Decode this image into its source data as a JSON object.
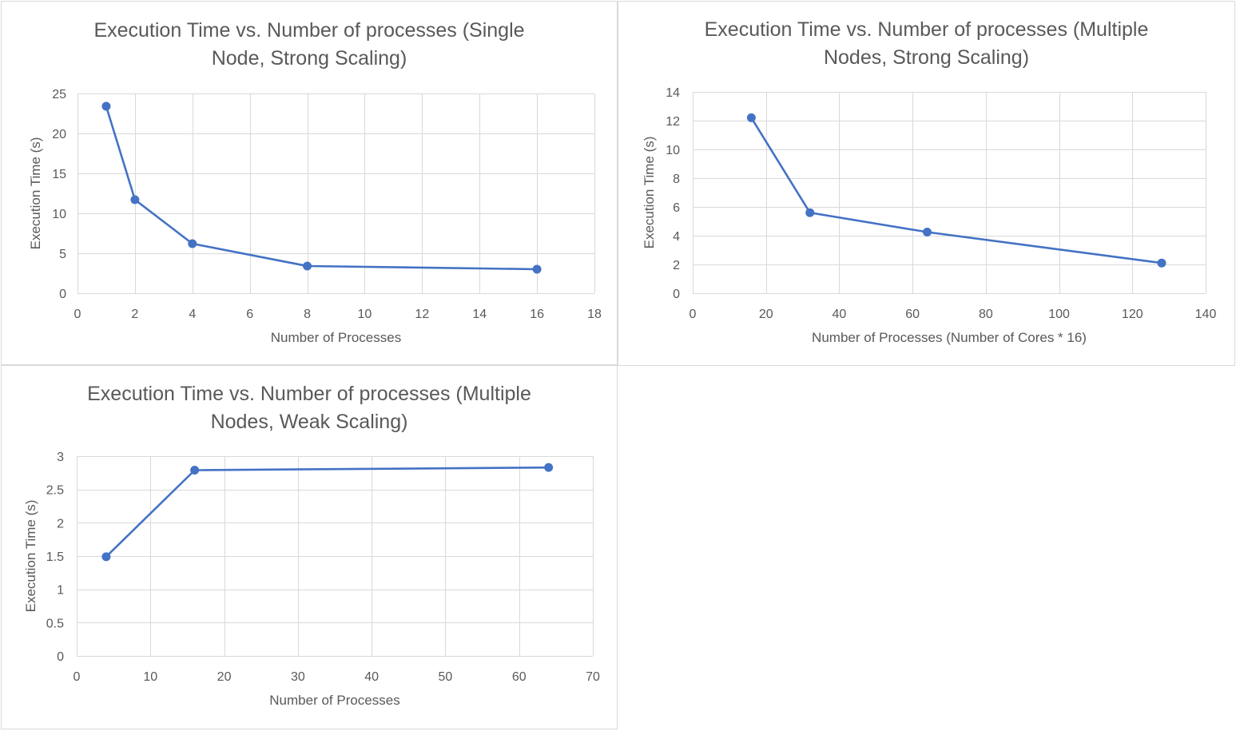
{
  "colors": {
    "series": "#4472c4",
    "grid": "#d9d9d9",
    "text": "#595959",
    "border": "#d9d9d9"
  },
  "chart_data": [
    {
      "type": "line",
      "title": "Execution Time vs. Number of processes (Single Node, Strong Scaling)",
      "xlabel": "Number of Processes",
      "ylabel": "Execution Time (s)",
      "xlim": [
        0,
        18
      ],
      "ylim": [
        0,
        25
      ],
      "xticks": [
        0,
        2,
        4,
        6,
        8,
        10,
        12,
        14,
        16,
        18
      ],
      "yticks": [
        0,
        5,
        10,
        15,
        20,
        25
      ],
      "xtick_labels": [
        "0",
        "2",
        "4",
        "6",
        "8",
        "10",
        "12",
        "14",
        "16",
        "18"
      ],
      "ytick_labels": [
        "0",
        "5",
        "10",
        "15",
        "20",
        "25"
      ],
      "grid": true,
      "legend": "none",
      "series": [
        {
          "x": [
            1,
            2,
            4,
            8,
            16
          ],
          "y": [
            23.4,
            11.7,
            6.2,
            3.4,
            3.0
          ]
        }
      ]
    },
    {
      "type": "line",
      "title": "Execution Time vs. Number of processes (Multiple Nodes, Strong Scaling)",
      "xlabel": "Number of Processes (Number of Cores * 16)",
      "ylabel": "Execution Time (s)",
      "xlim": [
        0,
        140
      ],
      "ylim": [
        0,
        14
      ],
      "xticks": [
        0,
        20,
        40,
        60,
        80,
        100,
        120,
        140
      ],
      "yticks": [
        0,
        2,
        4,
        6,
        8,
        10,
        12,
        14
      ],
      "xtick_labels": [
        "0",
        "20",
        "40",
        "60",
        "80",
        "100",
        "120",
        "140"
      ],
      "ytick_labels": [
        "0",
        "2",
        "4",
        "6",
        "8",
        "10",
        "12",
        "14"
      ],
      "grid": true,
      "legend": "none",
      "series": [
        {
          "x": [
            16,
            32,
            64,
            128
          ],
          "y": [
            12.2,
            5.6,
            4.25,
            2.1
          ]
        }
      ]
    },
    {
      "type": "line",
      "title": "Execution Time vs. Number of processes (Multiple Nodes, Weak Scaling)",
      "xlabel": "Number of Processes",
      "ylabel": "Execution Time (s)",
      "xlim": [
        0,
        70
      ],
      "ylim": [
        0,
        3
      ],
      "xticks": [
        0,
        10,
        20,
        30,
        40,
        50,
        60,
        70
      ],
      "yticks": [
        0,
        0.5,
        1,
        1.5,
        2,
        2.5,
        3
      ],
      "xtick_labels": [
        "0",
        "10",
        "20",
        "30",
        "40",
        "50",
        "60",
        "70"
      ],
      "ytick_labels": [
        "0",
        "0.5",
        "1",
        "1.5",
        "2",
        "2.5",
        "3"
      ],
      "grid": true,
      "legend": "none",
      "series": [
        {
          "x": [
            4,
            16,
            64
          ],
          "y": [
            1.49,
            2.79,
            2.83
          ]
        }
      ]
    }
  ]
}
